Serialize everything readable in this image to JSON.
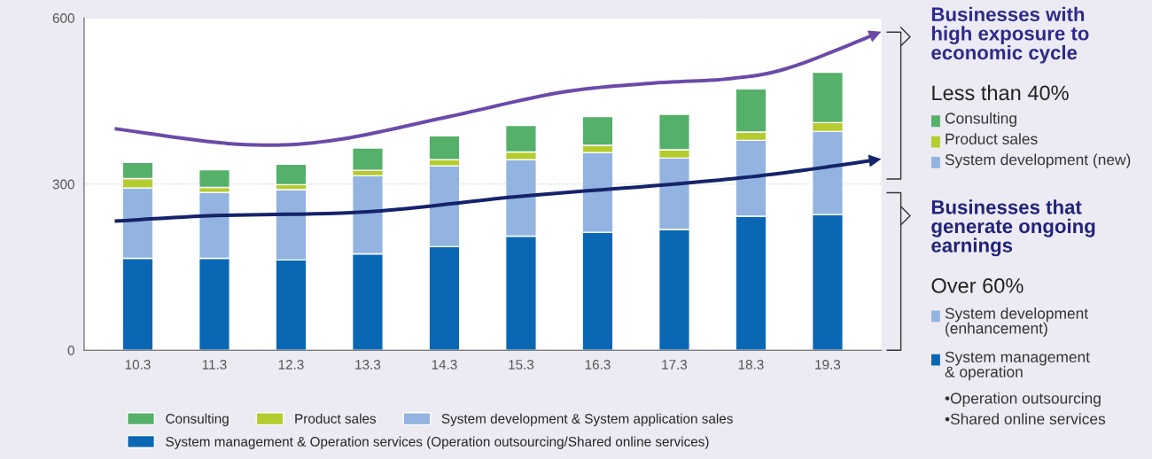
{
  "chart_data": {
    "type": "bar",
    "stacked": true,
    "categories": [
      "10.3",
      "11.3",
      "12.3",
      "13.3",
      "14.3",
      "15.3",
      "16.3",
      "17.3",
      "18.3",
      "19.3"
    ],
    "series": [
      {
        "name": "System management & Operation services (Operation outsourcing/Shared online services)",
        "color": "#0a67b4",
        "values": [
          166,
          166,
          163,
          174,
          187,
          206,
          213,
          218,
          242,
          245
        ]
      },
      {
        "name": "System development & System application sales",
        "color": "#93b4e0",
        "values": [
          127,
          119,
          127,
          141,
          146,
          138,
          144,
          129,
          137,
          150
        ]
      },
      {
        "name": "Product sales",
        "color": "#b5cc2e",
        "values": [
          17,
          9,
          9,
          10,
          11,
          14,
          13,
          15,
          15,
          16
        ]
      },
      {
        "name": "Consulting",
        "color": "#55b06a",
        "values": [
          29,
          32,
          37,
          40,
          43,
          48,
          52,
          64,
          78,
          91
        ]
      }
    ],
    "ylim": [
      0,
      600
    ],
    "yticks": [
      0,
      300,
      600
    ],
    "grid": "y",
    "legend": "bottom",
    "annotations": [
      "Businesses with\nhigh exposure to\neconomic cycle",
      "Less than 40%",
      "Consulting",
      "Product sales",
      "System development (new)",
      "Businesses that\ngenerate ongoing\nearnings",
      "Over 60%",
      "System development\n(enhancement)",
      "System management\n& operation",
      "•Operation outsourcing",
      "•Shared online services"
    ]
  }
}
